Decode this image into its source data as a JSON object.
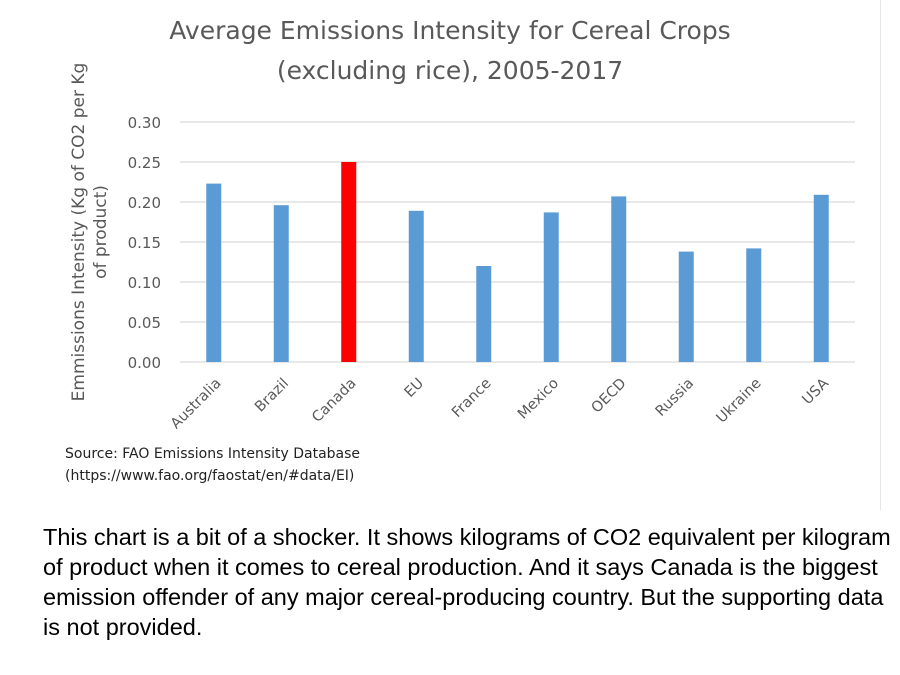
{
  "chart_data": {
    "type": "bar",
    "title": "Average Emissions Intensity for Cereal Crops (excluding rice), 2005-2017",
    "title_lines": [
      "Average Emissions Intensity for Cereal Crops",
      "(excluding rice), 2005-2017"
    ],
    "ylabel": "Emmissions Intensity (Kg of CO2 per Kg of product)",
    "ylabel_lines": [
      "Emmissions Intensity (Kg of CO2 per Kg",
      "of product)"
    ],
    "xlabel": "",
    "categories": [
      "Australia",
      "Brazil",
      "Canada",
      "EU",
      "France",
      "Mexico",
      "OECD",
      "Russia",
      "Ukraine",
      "USA"
    ],
    "values": [
      0.223,
      0.196,
      0.25,
      0.189,
      0.12,
      0.187,
      0.207,
      0.138,
      0.142,
      0.209
    ],
    "bar_colors": [
      "#5b9bd5",
      "#5b9bd5",
      "#ff0000",
      "#5b9bd5",
      "#5b9bd5",
      "#5b9bd5",
      "#5b9bd5",
      "#5b9bd5",
      "#5b9bd5",
      "#5b9bd5"
    ],
    "ylim": [
      0,
      0.3
    ],
    "yticks": [
      "0.00",
      "0.05",
      "0.10",
      "0.15",
      "0.20",
      "0.25",
      "0.30"
    ],
    "grid": true,
    "legend": "none"
  },
  "source": {
    "line1": "Source: FAO Emissions Intensity Database",
    "line2": "(https://www.fao.org/faostat/en/#data/EI)"
  },
  "caption": "This chart is a bit of a shocker. It shows kilograms of CO2 equivalent per kilogram of product when it comes to cereal production. And it says Canada is the biggest emission offender of any major cereal-producing country. But the supporting data is not provided."
}
